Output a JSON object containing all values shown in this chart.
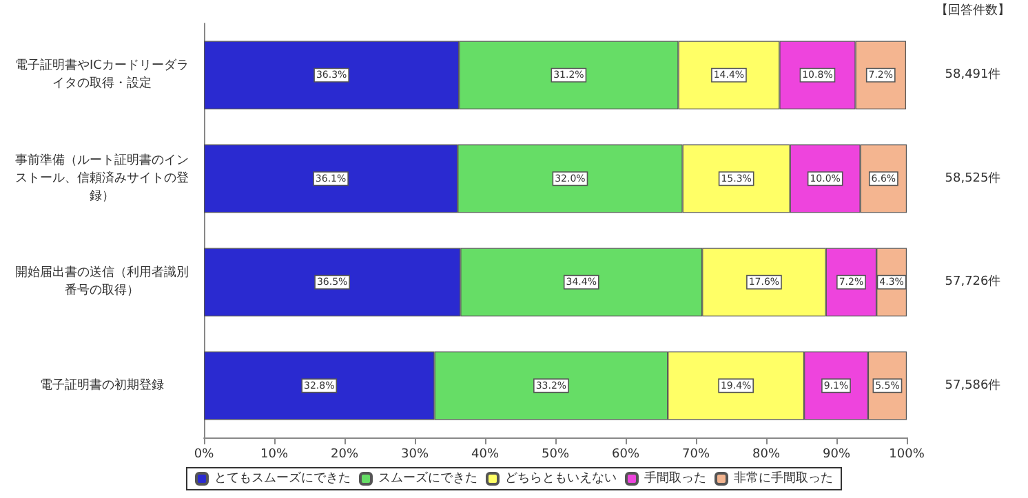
{
  "chart_data": {
    "type": "bar",
    "orientation": "horizontal",
    "stacked": true,
    "categories": [
      "電子証明書やICカードリーダライタの取得・設定",
      "事前準備（ルート証明書のインストール、信頼済みサイトの登録）",
      "開始届出書の送信（利用者識別番号の取得）",
      "電子証明書の初期登録"
    ],
    "series": [
      {
        "name": "とてもスムーズにできた",
        "color": "#2a2ad0",
        "values": [
          36.3,
          36.1,
          36.5,
          32.8
        ],
        "value_labels": [
          "36.3%",
          "36.1%",
          "36.5%",
          "32.8%"
        ]
      },
      {
        "name": "スムーズにできた",
        "color": "#66dd66",
        "values": [
          31.2,
          32.0,
          34.4,
          33.2
        ],
        "value_labels": [
          "31.2%",
          "32.0%",
          "34.4%",
          "33.2%"
        ]
      },
      {
        "name": "どちらともいえない",
        "color": "#ffff66",
        "values": [
          14.4,
          15.3,
          17.6,
          19.4
        ],
        "value_labels": [
          "14.4%",
          "15.3%",
          "17.6%",
          "19.4%"
        ]
      },
      {
        "name": "手間取った",
        "color": "#ee44dd",
        "values": [
          10.8,
          10.0,
          7.2,
          9.1
        ],
        "value_labels": [
          "10.8%",
          "10.0%",
          "7.2%",
          "9.1%"
        ]
      },
      {
        "name": "非常に手間取った",
        "color": "#f4b590",
        "values": [
          7.2,
          6.6,
          4.3,
          5.5
        ],
        "value_labels": [
          "7.2%",
          "6.6%",
          "4.3%",
          "5.5%"
        ]
      }
    ],
    "xlim": [
      0,
      100
    ],
    "xticks": [
      {
        "value": 0,
        "label": "0%"
      },
      {
        "value": 10,
        "label": "10%"
      },
      {
        "value": 20,
        "label": "20%"
      },
      {
        "value": 30,
        "label": "30%"
      },
      {
        "value": 40,
        "label": "40%"
      },
      {
        "value": 50,
        "label": "50%"
      },
      {
        "value": 60,
        "label": "60%"
      },
      {
        "value": 70,
        "label": "70%"
      },
      {
        "value": 80,
        "label": "80%"
      },
      {
        "value": 90,
        "label": "90%"
      },
      {
        "value": 100,
        "label": "100%"
      }
    ],
    "annotations": [
      "【回答件数】",
      "58,491件",
      "58,525件",
      "57,726件",
      "57,586件"
    ],
    "legend": "bottom"
  }
}
